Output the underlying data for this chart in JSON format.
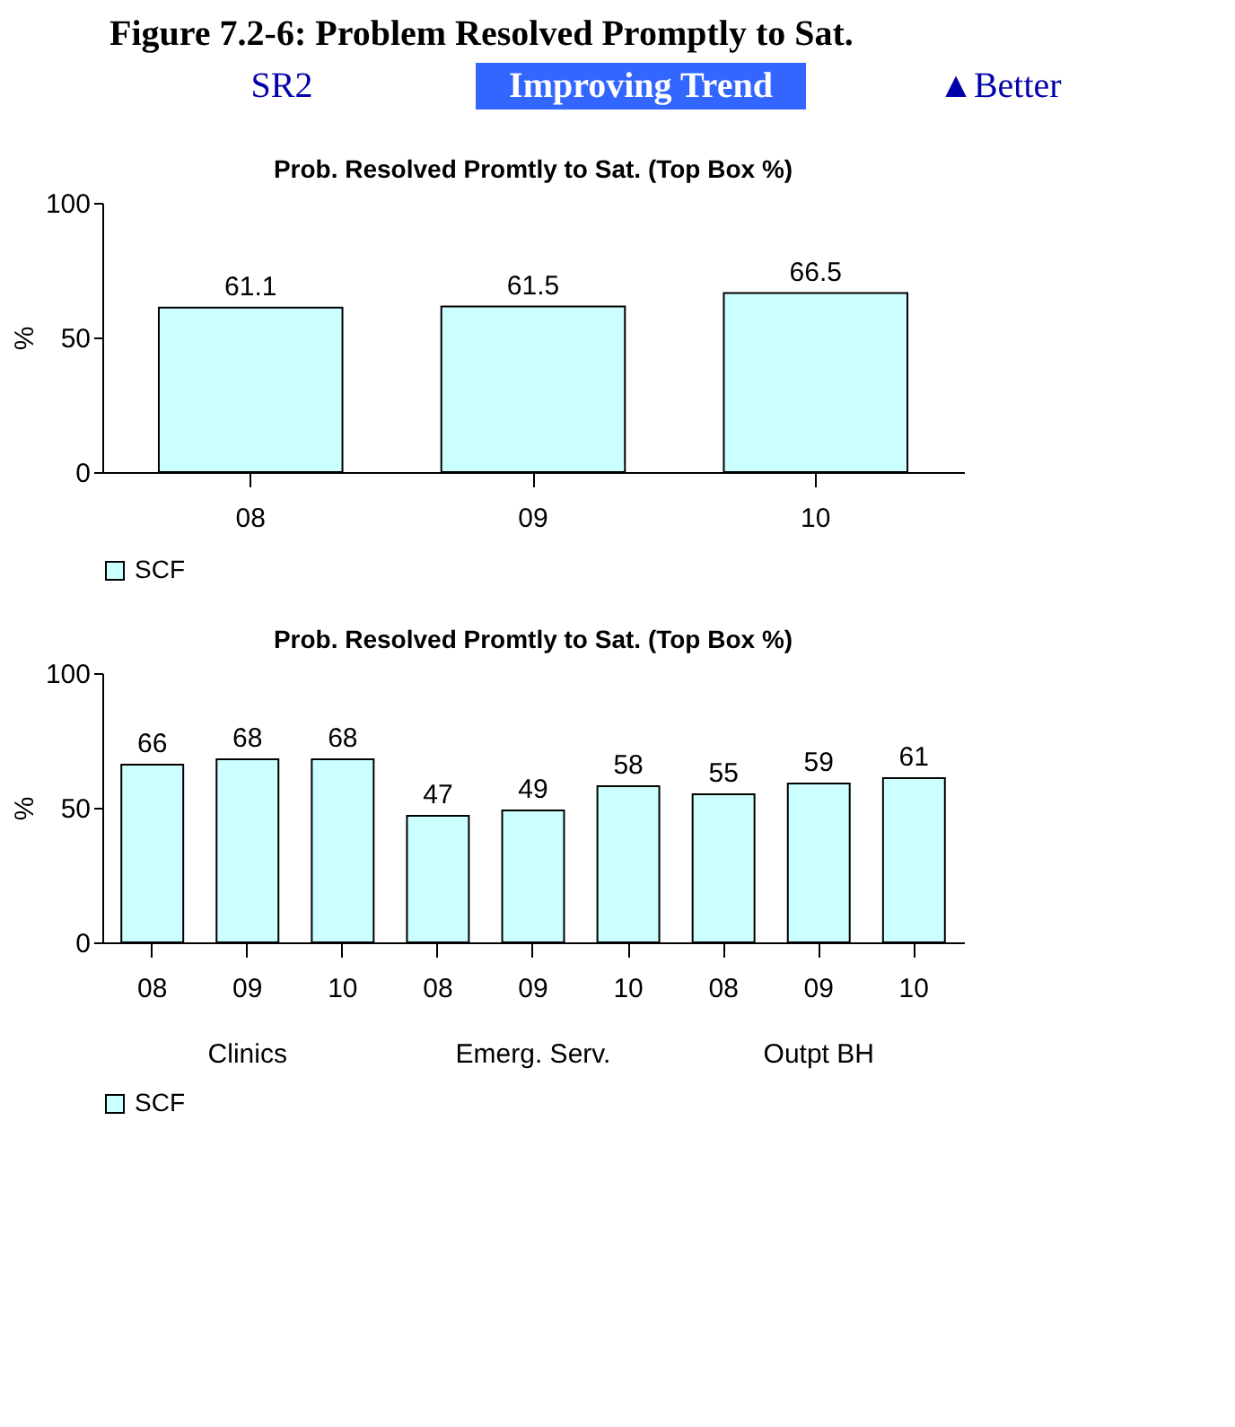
{
  "chart_data": [
    {
      "type": "bar",
      "title": "Prob. Resolved Promtly to Sat. (Top Box %)",
      "ylabel": "%",
      "categories": [
        "08",
        "09",
        "10"
      ],
      "series": [
        {
          "name": "SCF",
          "color": "#ccffff",
          "values": [
            61.1,
            61.5,
            66.5
          ]
        }
      ],
      "ylim": [
        0,
        100
      ],
      "yticks": [
        0,
        50,
        100
      ],
      "grid": false,
      "legend": "bottom",
      "data_labels": true,
      "annotations": [
        "Figure 7.2-6: Problem Resolved Promptly to Sat.",
        "SR2",
        "Improving Trend",
        "▲Better"
      ]
    },
    {
      "type": "bar",
      "title": "Prob. Resolved Promtly to Sat. (Top Box %)",
      "ylabel": "%",
      "categories": [
        "08",
        "09",
        "10",
        "08",
        "09",
        "10",
        "08",
        "09",
        "10"
      ],
      "series": [
        {
          "name": "SCF",
          "color": "#ccffff",
          "values": [
            66,
            68,
            68,
            47,
            49,
            58,
            55,
            59,
            61
          ]
        }
      ],
      "ylim": [
        0,
        100
      ],
      "yticks": [
        0,
        50,
        100
      ],
      "grid": false,
      "legend": "bottom",
      "data_labels": true,
      "annotations": [
        "Clinics",
        "Emerg. Serv.",
        "Outpt BH"
      ]
    }
  ]
}
